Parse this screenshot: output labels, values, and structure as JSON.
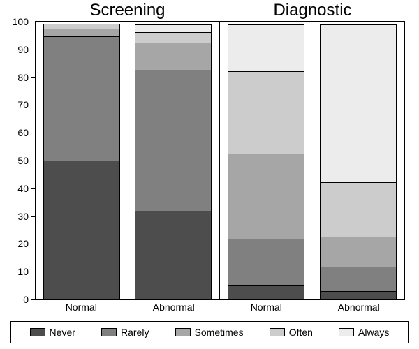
{
  "chart": {
    "type": "stacked-bar",
    "background_color": "#ffffff",
    "border_color": "#000000",
    "ylim": [
      0,
      100
    ],
    "ytick_step": 10,
    "yticks": [
      0,
      10,
      20,
      30,
      40,
      50,
      60,
      70,
      80,
      90,
      100
    ],
    "panel_titles": [
      "Screening",
      "Diagnostic"
    ],
    "panel_title_fontsize": 24,
    "xlabel_fontsize": 14,
    "ylabel_fontsize": 14,
    "legend_fontsize": 14,
    "series": [
      {
        "key": "never",
        "label": "Never",
        "color": "#4d4d4d"
      },
      {
        "key": "rarely",
        "label": "Rarely",
        "color": "#808080"
      },
      {
        "key": "sometimes",
        "label": "Sometimes",
        "color": "#a6a6a6"
      },
      {
        "key": "often",
        "label": "Often",
        "color": "#cccccc"
      },
      {
        "key": "always",
        "label": "Always",
        "color": "#ececec"
      }
    ],
    "panels": [
      {
        "title": "Screening",
        "bars": [
          {
            "label": "Normal",
            "values": {
              "never": 50,
              "rarely": 45,
              "sometimes": 3,
              "often": 2,
              "always": 0
            }
          },
          {
            "label": "Abnormal",
            "values": {
              "never": 32,
              "rarely": 51,
              "sometimes": 10,
              "often": 4,
              "always": 3
            }
          }
        ]
      },
      {
        "title": "Diagnostic",
        "bars": [
          {
            "label": "Normal",
            "values": {
              "never": 5,
              "rarely": 17,
              "sometimes": 31,
              "often": 30,
              "always": 17
            }
          },
          {
            "label": "Abnormal",
            "values": {
              "never": 3,
              "rarely": 9,
              "sometimes": 11,
              "often": 20,
              "always": 57
            }
          }
        ]
      }
    ]
  }
}
